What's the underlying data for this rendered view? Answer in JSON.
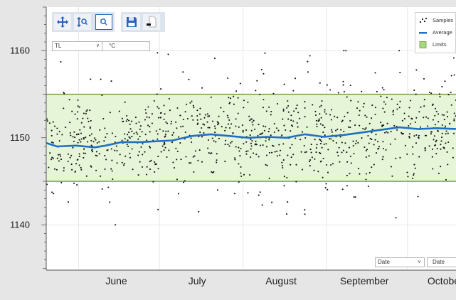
{
  "toolbar": {
    "pan_icon": "pan-arrows-icon",
    "zoom_axis_icon": "zoom-axis-icon",
    "zoom_box_icon": "zoom-box-icon",
    "save_icon": "floppy-disk-icon",
    "export_icon": "document-export-icon"
  },
  "controls": {
    "channel_value": "TL",
    "unit_value": "°C",
    "x_mode_value": "Date",
    "x_mode_button": "Date"
  },
  "legend": {
    "samples": "Samples",
    "average": "Average",
    "limits": "Limits"
  },
  "colors": {
    "samples": "#111111",
    "average": "#1f6fc4",
    "limits_fill": "#e6f5d8",
    "limits_line": "#6a9a3a",
    "grid": "#e8e8e8",
    "plot_bg": "#ffffff",
    "outer_bg": "#e6e6e6"
  },
  "chart_data": {
    "type": "scatter",
    "title": "",
    "xlabel": "",
    "ylabel": "",
    "x_ticks": [
      "June",
      "July",
      "August",
      "September",
      "October"
    ],
    "y_ticks": [
      1140,
      1150,
      1160
    ],
    "xlim": [
      "2000-05-20",
      "2000-10-19"
    ],
    "ylim": [
      1134.8,
      1165
    ],
    "limits": {
      "lower": 1145,
      "upper": 1155
    },
    "series": [
      {
        "name": "Samples",
        "kind": "scatter",
        "distribution": {
          "count": 950,
          "center": 1150,
          "spread": 2.6,
          "range": [
            1140,
            1160
          ]
        }
      },
      {
        "name": "Average",
        "kind": "line",
        "x": [
          "2000-05-20",
          "2000-05-24",
          "2000-05-31",
          "2000-06-07",
          "2000-06-11",
          "2000-06-17",
          "2000-06-24",
          "2000-06-30",
          "2000-07-06",
          "2000-07-13",
          "2000-07-20",
          "2000-07-27",
          "2000-08-03",
          "2000-08-10",
          "2000-08-17",
          "2000-08-24",
          "2000-08-31",
          "2000-09-07",
          "2000-09-14",
          "2000-09-21",
          "2000-09-28",
          "2000-10-05",
          "2000-10-12",
          "2000-10-19"
        ],
        "y": [
          1149.4,
          1149.0,
          1149.1,
          1148.9,
          1149.1,
          1149.5,
          1149.5,
          1149.6,
          1149.7,
          1150.2,
          1150.4,
          1150.2,
          1150.0,
          1150.1,
          1150.0,
          1150.4,
          1150.1,
          1150.3,
          1150.6,
          1150.9,
          1151.2,
          1151.0,
          1151.1,
          1151.0
        ]
      }
    ],
    "grid": true,
    "legend_position": "top-right"
  }
}
